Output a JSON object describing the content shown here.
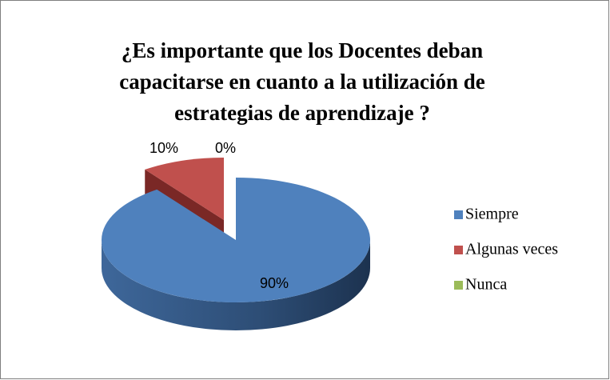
{
  "chart_data": {
    "type": "pie3d",
    "title": [
      "¿Es importante que los Docentes deban",
      "capacitarse en cuanto a la utilización de",
      "estrategias de aprendizaje ?"
    ],
    "categories": [
      "Siempre",
      "Algunas veces",
      "Nunca"
    ],
    "values": [
      90,
      10,
      0
    ],
    "value_labels": [
      "90%",
      "10%",
      "0%"
    ],
    "colors": [
      "#4f81bd",
      "#c0504d",
      "#9bbb59"
    ],
    "legend": "right"
  }
}
